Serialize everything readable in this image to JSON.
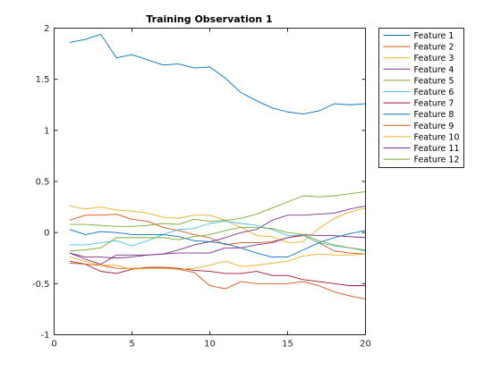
{
  "chart_data": {
    "type": "line",
    "title": "Training Observation 1",
    "xlabel": "",
    "ylabel": "",
    "xlim": [
      0,
      20
    ],
    "ylim": [
      -1,
      2
    ],
    "xticks": [
      0,
      5,
      10,
      15,
      20
    ],
    "yticks": [
      -1,
      -0.5,
      0,
      0.5,
      1,
      1.5,
      2
    ],
    "ytick_labels": [
      "-1",
      "-0.5",
      "0",
      "0.5",
      "1",
      "1.5",
      "2"
    ],
    "grid": false,
    "legend_position": "top-right-outside",
    "x": [
      1,
      2,
      3,
      4,
      5,
      6,
      7,
      8,
      9,
      10,
      11,
      12,
      13,
      14,
      15,
      16,
      17,
      18,
      19,
      20
    ],
    "series": [
      {
        "name": "Feature 1",
        "color": "#0072BD",
        "values": [
          1.86,
          1.89,
          1.94,
          1.71,
          1.74,
          1.69,
          1.64,
          1.65,
          1.61,
          1.62,
          1.51,
          1.37,
          1.29,
          1.22,
          1.18,
          1.16,
          1.19,
          1.26,
          1.25,
          1.26
        ]
      },
      {
        "name": "Feature 2",
        "color": "#D95319",
        "values": [
          0.12,
          0.17,
          0.17,
          0.18,
          0.13,
          0.11,
          0.05,
          0.02,
          -0.02,
          -0.05,
          -0.12,
          -0.1,
          -0.1,
          -0.09,
          -0.05,
          -0.03,
          -0.1,
          -0.18,
          -0.2,
          -0.21
        ]
      },
      {
        "name": "Feature 3",
        "color": "#EDB120",
        "values": [
          0.26,
          0.23,
          0.25,
          0.22,
          0.21,
          0.19,
          0.15,
          0.14,
          0.17,
          0.17,
          0.12,
          0.05,
          -0.03,
          -0.04,
          -0.1,
          -0.09,
          0.04,
          0.14,
          0.2,
          0.24
        ]
      },
      {
        "name": "Feature 4",
        "color": "#7E2F8E",
        "values": [
          -0.2,
          -0.26,
          -0.31,
          -0.22,
          -0.22,
          -0.22,
          -0.21,
          -0.17,
          -0.12,
          -0.09,
          -0.05,
          0.0,
          0.03,
          0.12,
          0.17,
          0.17,
          0.18,
          0.19,
          0.23,
          0.26
        ]
      },
      {
        "name": "Feature 5",
        "color": "#77AC30",
        "values": [
          0.08,
          0.08,
          0.07,
          0.06,
          0.06,
          0.07,
          0.09,
          0.08,
          0.13,
          0.11,
          0.12,
          0.14,
          0.18,
          0.24,
          0.3,
          0.36,
          0.35,
          0.36,
          0.38,
          0.4
        ]
      },
      {
        "name": "Feature 6",
        "color": "#4DBEEE",
        "values": [
          -0.12,
          -0.12,
          -0.1,
          -0.08,
          -0.13,
          -0.08,
          -0.02,
          0.03,
          0.04,
          0.09,
          0.11,
          0.09,
          0.07,
          0.03,
          -0.03,
          -0.03,
          -0.1,
          -0.13,
          -0.15,
          -0.18
        ]
      },
      {
        "name": "Feature 7",
        "color": "#A2142F",
        "values": [
          -0.28,
          -0.31,
          -0.38,
          -0.4,
          -0.36,
          -0.34,
          -0.34,
          -0.35,
          -0.37,
          -0.38,
          -0.4,
          -0.4,
          -0.38,
          -0.42,
          -0.42,
          -0.46,
          -0.48,
          -0.5,
          -0.52,
          -0.52
        ]
      },
      {
        "name": "Feature 8",
        "color": "#0072BD",
        "values": [
          0.03,
          -0.02,
          0.01,
          0.0,
          -0.02,
          -0.02,
          -0.02,
          -0.04,
          -0.08,
          -0.09,
          -0.11,
          -0.15,
          -0.2,
          -0.24,
          -0.24,
          -0.17,
          -0.1,
          -0.05,
          -0.01,
          0.02
        ]
      },
      {
        "name": "Feature 9",
        "color": "#D95319",
        "values": [
          -0.3,
          -0.31,
          -0.32,
          -0.35,
          -0.35,
          -0.35,
          -0.35,
          -0.36,
          -0.39,
          -0.52,
          -0.55,
          -0.48,
          -0.5,
          -0.5,
          -0.5,
          -0.48,
          -0.52,
          -0.58,
          -0.62,
          -0.65
        ]
      },
      {
        "name": "Feature 10",
        "color": "#EDB120",
        "values": [
          -0.24,
          -0.28,
          -0.32,
          -0.32,
          -0.36,
          -0.35,
          -0.35,
          -0.36,
          -0.35,
          -0.32,
          -0.28,
          -0.33,
          -0.32,
          -0.3,
          -0.28,
          -0.23,
          -0.21,
          -0.22,
          -0.22,
          -0.21
        ]
      },
      {
        "name": "Feature 11",
        "color": "#7E2F8E",
        "values": [
          -0.2,
          -0.24,
          -0.24,
          -0.25,
          -0.24,
          -0.22,
          -0.21,
          -0.2,
          -0.2,
          -0.2,
          -0.15,
          -0.15,
          -0.12,
          -0.1,
          -0.05,
          -0.02,
          -0.03,
          -0.03,
          -0.04,
          -0.05
        ]
      },
      {
        "name": "Feature 12",
        "color": "#77AC30",
        "values": [
          -0.18,
          -0.17,
          -0.15,
          -0.05,
          -0.05,
          -0.05,
          -0.05,
          -0.07,
          -0.04,
          -0.02,
          0.02,
          0.05,
          0.05,
          0.04,
          0.0,
          -0.02,
          -0.08,
          -0.12,
          -0.15,
          -0.17
        ]
      }
    ]
  }
}
